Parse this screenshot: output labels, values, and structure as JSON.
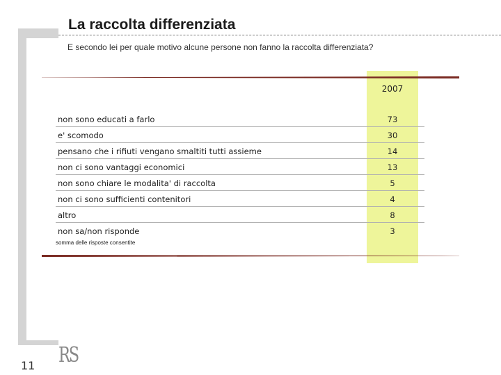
{
  "title": "La raccolta differenziata",
  "subtitle": "E secondo lei per quale motivo alcune persone non fanno la raccolta differenziata?",
  "column_header": "2007",
  "rows": [
    {
      "label": "non sono educati a farlo",
      "value": "73"
    },
    {
      "label": "e' scomodo",
      "value": "30"
    },
    {
      "label": "pensano che i rifiuti vengano smaltiti tutti assieme",
      "value": "14"
    },
    {
      "label": "non ci sono vantaggi economici",
      "value": "13"
    },
    {
      "label": "non sono chiare le modalita' di raccolta",
      "value": "5"
    },
    {
      "label": "non ci sono sufficienti contenitori",
      "value": "4"
    },
    {
      "label": "altro",
      "value": "8"
    },
    {
      "label": "non sa/non risponde",
      "value": "3"
    }
  ],
  "note": "somma delle risposte consentite",
  "logo": "RS",
  "page_number": "11",
  "colors": {
    "highlight": "#eef59a",
    "rule": "#7a2a22",
    "frame": "#d4d4d4"
  }
}
